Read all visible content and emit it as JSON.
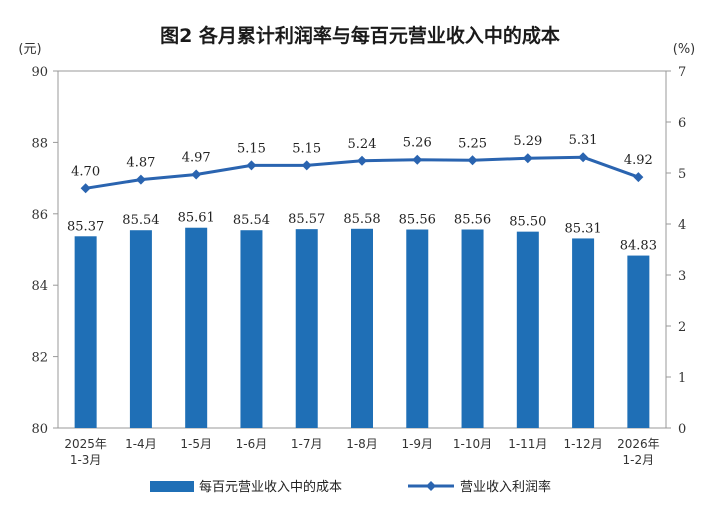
{
  "chart_data": {
    "type": "bar",
    "title": "图2 各月累计利润率与每百元营业收入中的成本",
    "categories": [
      [
        "2025年",
        "1-3月"
      ],
      [
        "1-4月"
      ],
      [
        "1-5月"
      ],
      [
        "1-6月"
      ],
      [
        "1-7月"
      ],
      [
        "1-8月"
      ],
      [
        "1-9月"
      ],
      [
        "1-10月"
      ],
      [
        "1-11月"
      ],
      [
        "1-12月"
      ],
      [
        "2026年",
        "1-2月"
      ]
    ],
    "left_axis": {
      "unit": "(元)",
      "ylim": [
        80,
        90
      ],
      "ticks": [
        "80",
        "82",
        "84",
        "86",
        "88",
        "90"
      ]
    },
    "right_axis": {
      "unit": "(%)",
      "ylim": [
        0,
        7
      ],
      "ticks": [
        "0",
        "1",
        "2",
        "3",
        "4",
        "5",
        "6",
        "7"
      ]
    },
    "series": [
      {
        "name": "每百元营业收入中的成本",
        "type": "bar",
        "axis": "left",
        "color": "#1f6fb6",
        "values": [
          85.37,
          85.54,
          85.61,
          85.54,
          85.57,
          85.58,
          85.56,
          85.56,
          85.5,
          85.31,
          84.83
        ],
        "labels": [
          "85.37",
          "85.54",
          "85.61",
          "85.54",
          "85.57",
          "85.58",
          "85.56",
          "85.56",
          "85.50",
          "85.31",
          "84.83"
        ]
      },
      {
        "name": "营业收入利润率",
        "type": "line",
        "axis": "right",
        "color": "#2a64b0",
        "values": [
          4.7,
          4.87,
          4.97,
          5.15,
          5.15,
          5.24,
          5.26,
          5.25,
          5.29,
          5.31,
          4.92
        ],
        "labels": [
          "4.70",
          "4.87",
          "4.97",
          "5.15",
          "5.15",
          "5.24",
          "5.26",
          "5.25",
          "5.29",
          "5.31",
          "4.92"
        ]
      }
    ],
    "legend_position": "bottom",
    "grid": false
  }
}
